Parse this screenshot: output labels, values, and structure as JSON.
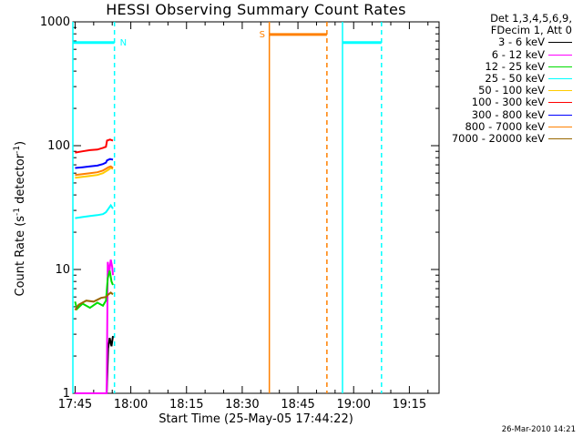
{
  "chart_data": {
    "type": "line",
    "title": "HESSI Observing Summary Count Rates",
    "xlabel": "Start Time (25-May-05 17:44:22)",
    "ylabel_parts": [
      "Count Rate (s",
      "-1",
      " detector",
      "-1",
      ")"
    ],
    "yscale": "log",
    "ylim": [
      1,
      1000
    ],
    "xlim_minutes_after_1745": [
      -0.6,
      98
    ],
    "x_ticks": [
      "17:45",
      "18:00",
      "18:15",
      "18:30",
      "18:45",
      "19:00",
      "19:15"
    ],
    "y_ticks": [
      "1",
      "10",
      "100",
      "1000"
    ],
    "legend_header": [
      "Det 1,3,4,5,6,9,",
      "FDecim 1, Att 0"
    ],
    "series": [
      {
        "name": "3 - 6 keV",
        "color": "#000000",
        "x": [
          8.5,
          8.9,
          9.3,
          9.8,
          10.2
        ],
        "y": [
          1.0,
          2.3,
          2.8,
          2.4,
          2.9
        ]
      },
      {
        "name": "6 - 12 keV",
        "color": "#ff00ff",
        "x": [
          0,
          4,
          8.5,
          8.8,
          9.2,
          9.6,
          10.0,
          10.2
        ],
        "y": [
          1.0,
          1.0,
          1.0,
          11.5,
          9.5,
          12.0,
          10.5,
          9.0
        ]
      },
      {
        "name": "12 - 25 keV",
        "color": "#00dd00",
        "x": [
          0,
          0.5,
          2,
          4,
          6,
          7.5,
          8.3,
          8.8,
          9.3,
          9.8,
          10.2
        ],
        "y": [
          5.5,
          4.8,
          5.3,
          4.9,
          5.4,
          5.1,
          5.6,
          8.5,
          9.8,
          8.0,
          7.5
        ]
      },
      {
        "name": "25 - 50 keV",
        "color": "#00ffff",
        "x": [
          0,
          2,
          4,
          6,
          7.5,
          8.3,
          9.0,
          9.6,
          10.2
        ],
        "y": [
          26,
          26.5,
          27,
          27.5,
          28,
          29,
          31,
          33,
          31
        ]
      },
      {
        "name": "50 - 100 keV",
        "color": "#ffcc00",
        "x": [
          0,
          2,
          4,
          6,
          7.5,
          8.3,
          9.0,
          9.6,
          10.2
        ],
        "y": [
          55,
          56,
          57,
          58,
          60,
          62,
          64,
          66,
          65
        ]
      },
      {
        "name": "100 - 300 keV",
        "color": "#ff0000",
        "x": [
          0,
          2,
          4,
          6,
          7.5,
          8.3,
          8.6,
          9.4,
          10.2
        ],
        "y": [
          88,
          90,
          92,
          93,
          96,
          98,
          110,
          112,
          110
        ]
      },
      {
        "name": "300 - 800 keV",
        "color": "#0000ff",
        "x": [
          0,
          2,
          4,
          6,
          7.5,
          8.3,
          8.6,
          9.4,
          10.2
        ],
        "y": [
          66,
          67,
          68,
          69,
          71,
          73,
          76,
          78,
          77
        ]
      },
      {
        "name": "800 - 7000 keV",
        "color": "#ff8000",
        "x": [
          0,
          2,
          4,
          6,
          7.5,
          8.3,
          9.0,
          9.6,
          10.2
        ],
        "y": [
          58,
          59,
          60,
          61,
          63,
          65,
          67,
          68,
          66
        ]
      },
      {
        "name": "7000 - 20000 keV",
        "color": "#996600",
        "x": [
          0,
          1,
          3,
          5,
          7,
          8.3,
          9.0,
          9.6,
          10.2
        ],
        "y": [
          4.7,
          5.2,
          5.6,
          5.5,
          5.9,
          6.0,
          6.3,
          6.5,
          6.3
        ]
      }
    ],
    "orbit_markers": [
      {
        "label": "N",
        "color": "#00ffff",
        "start": -0.6,
        "end": 10.6,
        "level": 680
      },
      {
        "label": "S",
        "color": "#ff8000",
        "start": 52.3,
        "end": 67.8,
        "level": 790
      },
      {
        "label": "",
        "color": "#00ffff",
        "start": 72.0,
        "end": 82.5,
        "level": 680
      }
    ],
    "grid": false
  },
  "timestamp": "26-Mar-2010 14:21"
}
